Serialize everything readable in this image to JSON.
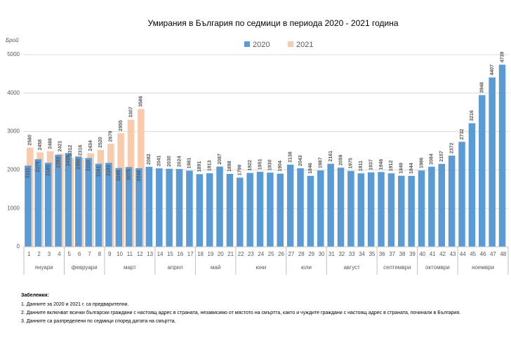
{
  "chart_data": {
    "type": "bar",
    "title": "Умирания в България по седмици в периода 2020 - 2021 година",
    "y_label": "Брой",
    "categories": [
      "1",
      "2",
      "3",
      "4",
      "5",
      "6",
      "7",
      "8",
      "9",
      "10",
      "11",
      "12",
      "13",
      "14",
      "15",
      "16",
      "17",
      "18",
      "19",
      "20",
      "21",
      "22",
      "23",
      "24",
      "25",
      "26",
      "27",
      "28",
      "29",
      "30",
      "31",
      "32",
      "33",
      "34",
      "35",
      "36",
      "37",
      "38",
      "39",
      "40",
      "41",
      "42",
      "43",
      "44",
      "45",
      "46",
      "47",
      "48"
    ],
    "series": [
      {
        "name": "2020",
        "color": "#5b9bd5",
        "label_color": "#1f4e79",
        "values": [
          2111,
          2279,
          2185,
          2393,
          2439,
          2350,
          2310,
          2161,
          2183,
          2049,
          2075,
          2044,
          2082,
          2041,
          2030,
          2024,
          1981,
          1891,
          1913,
          2087,
          1898,
          1799,
          1922,
          1951,
          1930,
          1904,
          2138,
          2043,
          1846,
          1987,
          2161,
          2059,
          1975,
          1911,
          1937,
          1946,
          1912,
          1849,
          1844,
          1986,
          2084,
          2157,
          2372,
          2732,
          3216,
          3948,
          4407,
          4739
        ]
      },
      {
        "name": "2021",
        "color": "#f8cbad",
        "label_color": "#c55a11",
        "values": [
          2580,
          2458,
          2488,
          2421,
          2312,
          2316,
          2434,
          2520,
          2679,
          2955,
          3307,
          3586,
          null,
          null,
          null,
          null,
          null,
          null,
          null,
          null,
          null,
          null,
          null,
          null,
          null,
          null,
          null,
          null,
          null,
          null,
          null,
          null,
          null,
          null,
          null,
          null,
          null,
          null,
          null,
          null,
          null,
          null,
          null,
          null,
          null,
          null,
          null,
          null
        ]
      }
    ],
    "groups": [
      {
        "label": "януари",
        "from": "1",
        "to": "4"
      },
      {
        "label": "февруари",
        "from": "5",
        "to": "8"
      },
      {
        "label": "март",
        "from": "9",
        "to": "13"
      },
      {
        "label": "април",
        "from": "14",
        "to": "17"
      },
      {
        "label": "май",
        "from": "18",
        "to": "21"
      },
      {
        "label": "юни",
        "from": "22",
        "to": "26"
      },
      {
        "label": "юли",
        "from": "27",
        "to": "30"
      },
      {
        "label": "август",
        "from": "31",
        "to": "35"
      },
      {
        "label": "септември",
        "from": "36",
        "to": "39"
      },
      {
        "label": "октомври",
        "from": "40",
        "to": "43"
      },
      {
        "label": "ноември",
        "from": "44",
        "to": "48"
      }
    ],
    "ylim": [
      0,
      5000
    ],
    "yticks": [
      0,
      1000,
      2000,
      3000,
      4000,
      5000
    ],
    "grid": true
  },
  "notes": {
    "title": "Забележки:",
    "items": [
      "1. Данните за 2020 и 2021 г. са предварителни.",
      "2. Данните включват всички български граждани с настоящ адрес в страната, независимо от мястото на смъртта, както и чуждите граждани с настоящ адрес в страната, починали в България.",
      "3. Данните са разпределени по седмици според датата на смъртта."
    ]
  }
}
